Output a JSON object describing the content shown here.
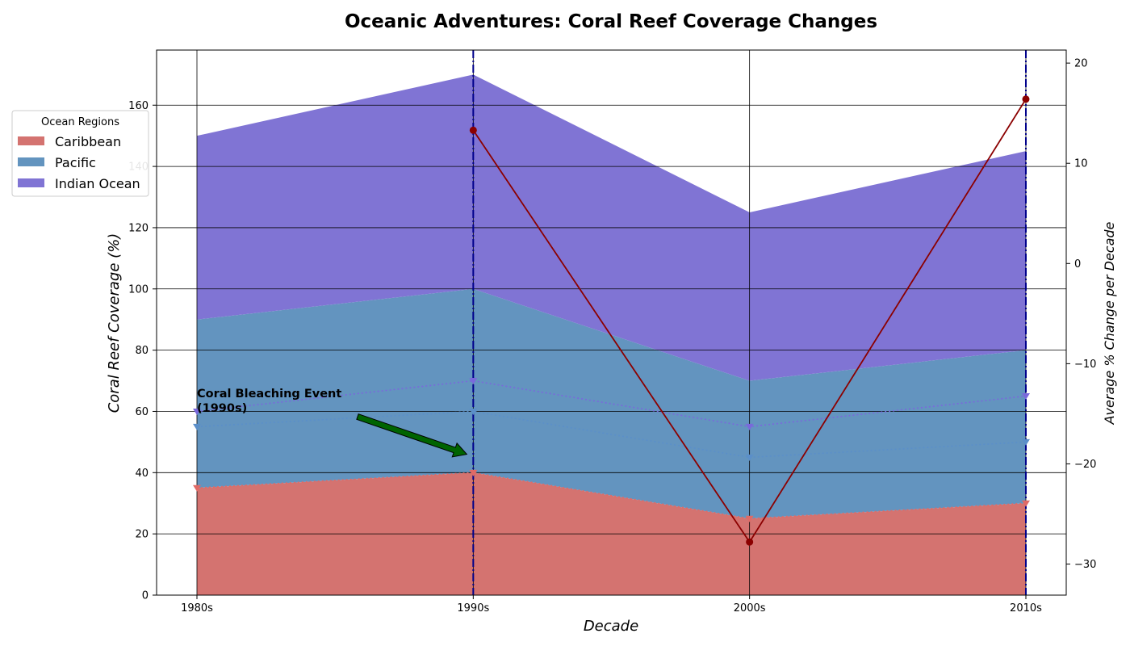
{
  "chart_data": {
    "type": "area",
    "title": "Oceanic Adventures: Coral Reef Coverage Changes",
    "xlabel": "Decade",
    "ylabel": "Coral Reef Coverage (%)",
    "y2label": "Average % Change per Decade",
    "categories": [
      "1980s",
      "1990s",
      "2000s",
      "2010s"
    ],
    "ylim": [
      0,
      178
    ],
    "yticks": [
      0,
      20,
      40,
      60,
      80,
      100,
      120,
      140,
      160
    ],
    "y2lim": [
      -33.1,
      21.3
    ],
    "y2ticks": [
      -30,
      -20,
      -10,
      0,
      10,
      20
    ],
    "stacked": true,
    "grid": true,
    "series": [
      {
        "name": "Caribbean",
        "values": [
          35,
          40,
          25,
          30
        ],
        "color": "#d47370",
        "marker_color": "#e06a66"
      },
      {
        "name": "Pacific",
        "values": [
          55,
          60,
          45,
          50
        ],
        "color": "#6394bf",
        "marker_color": "#5b8fc9"
      },
      {
        "name": "Indian Ocean",
        "values": [
          60,
          70,
          55,
          65
        ],
        "color": "#8074d4",
        "marker_color": "#7a68dc"
      }
    ],
    "secondary_series": {
      "axis": "right",
      "color": "#8b0000",
      "values": [
        null,
        13.3,
        -27.8,
        16.4
      ]
    },
    "vertical_lines": [
      "1990s",
      "2010s"
    ],
    "annotation": {
      "text": "Coral Bleaching Event\n(1990s)",
      "target": {
        "category": "1990s",
        "y": 46
      },
      "arrow_color": "#006400"
    },
    "legend": {
      "title": "Ocean Regions",
      "placement": "outside-left-top"
    }
  }
}
